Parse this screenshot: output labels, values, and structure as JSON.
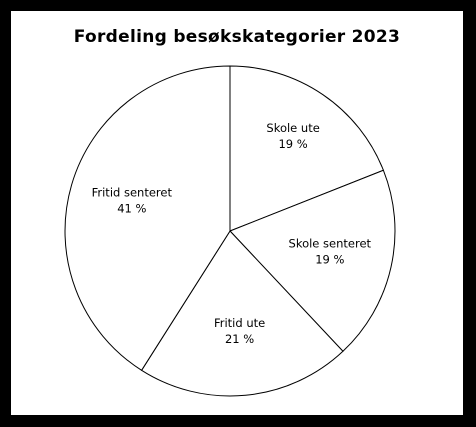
{
  "chart_data": {
    "type": "pie",
    "title": "Fordeling besøkskategorier 2023",
    "slices": [
      {
        "label": "Skole ute",
        "value": 19,
        "value_label": "19 %"
      },
      {
        "label": "Skole senteret",
        "value": 19,
        "value_label": "19 %"
      },
      {
        "label": "Fritid ute",
        "value": 21,
        "value_label": "21 %"
      },
      {
        "label": "Fritid senteret",
        "value": 41,
        "value_label": "41 %"
      }
    ],
    "start": "12 o'clock",
    "direction": "clockwise",
    "colors": {
      "fill": "#ffffff",
      "stroke": "#000000",
      "frame": "#000000"
    }
  }
}
